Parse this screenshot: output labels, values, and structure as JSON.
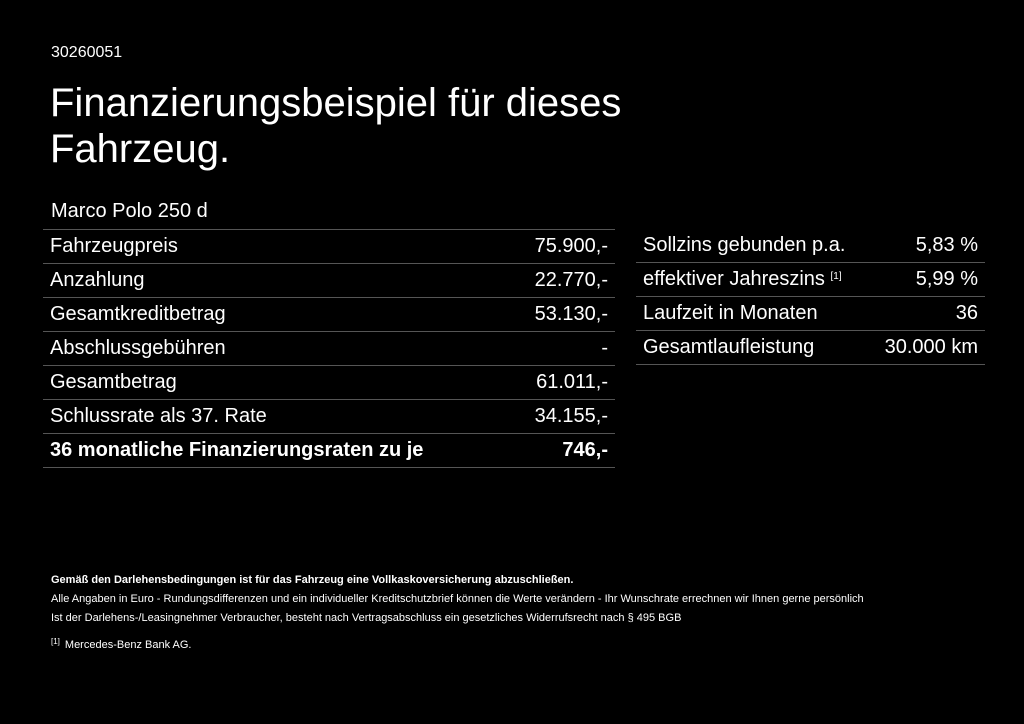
{
  "header": {
    "code": "30260051",
    "title": "Finanzierungsbeispiel für dieses Fahrzeug.",
    "model": "Marco Polo 250 d"
  },
  "left_table": [
    {
      "label": "Fahrzeugpreis",
      "value": "75.900,-"
    },
    {
      "label": "Anzahlung",
      "value": "22.770,-"
    },
    {
      "label": "Gesamtkreditbetrag",
      "value": "53.130,-"
    },
    {
      "label": "Abschlussgebühren",
      "value": "-"
    },
    {
      "label": "Gesamtbetrag",
      "value": "61.011,-"
    },
    {
      "label": "Schlussrate als 37. Rate",
      "value": "34.155,-"
    },
    {
      "label": "36 monatliche Finanzierungsraten zu je",
      "value": "746,-"
    }
  ],
  "right_table": [
    {
      "label": "Sollzins gebunden p.a.",
      "value": "5,83 %"
    },
    {
      "label": "effektiver Jahreszins",
      "sup": "[1]",
      "value": "5,99 %"
    },
    {
      "label": "Laufzeit in Monaten",
      "value": "36"
    },
    {
      "label": "Gesamtlaufleistung",
      "value": "30.000 km"
    }
  ],
  "notes": {
    "bold": "Gemäß den Darlehensbedingungen ist für das Fahrzeug eine Vollkaskoversicherung abzuschließen.",
    "line1": "Alle Angaben in Euro - Rundungsdifferenzen und ein individueller Kreditschutzbrief können die Werte verändern - Ihr Wunschrate errechnen wir Ihnen gerne persönlich",
    "line2": "Ist der Darlehens-/Leasingnehmer Verbraucher, besteht nach Vertragsabschluss ein gesetzliches Widerrufsrecht nach § 495 BGB",
    "footnote_mark": "[1]",
    "footnote_text": "Mercedes-Benz Bank AG."
  }
}
